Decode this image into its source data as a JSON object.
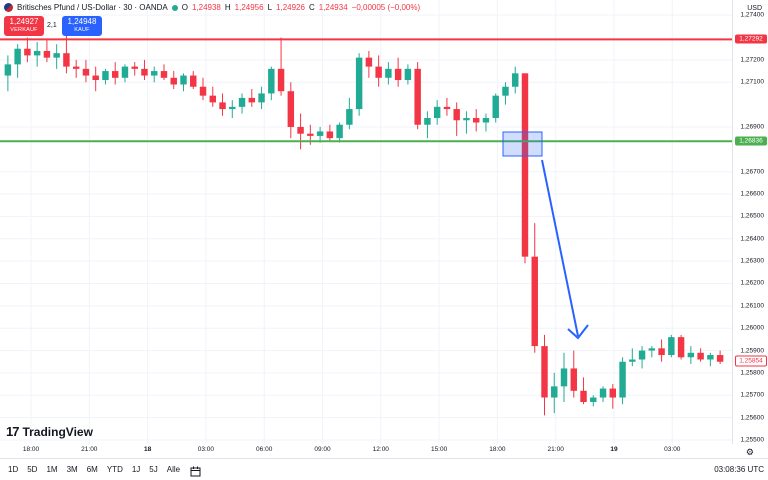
{
  "legend": {
    "symbol": "Britisches Pfund / US-Dollar · 30 · OANDA",
    "o_label": "O",
    "o": "1,24938",
    "h_label": "H",
    "h": "1,24956",
    "l_label": "L",
    "l": "1,24926",
    "c_label": "C",
    "c": "1,24934",
    "change": "−0,00005 (−0,00%)"
  },
  "trade": {
    "sell_price": "1,24927",
    "sell_label": "VERKAUF",
    "spread": "2,1",
    "buy_price": "1,24948",
    "buy_label": "KAUF"
  },
  "price_axis": {
    "currency": "USD",
    "labels": [
      "1,27400",
      "1,27292",
      "1,27200",
      "1,27100",
      "1,26900",
      "1,26836",
      "1,26700",
      "1,26600",
      "1,26500",
      "1,26400",
      "1,26300",
      "1,26200",
      "1,26100",
      "1,26000",
      "1,25900",
      "1,25800",
      "1,25700",
      "1,25600",
      "1,25500"
    ],
    "red_line_price": "1,27292",
    "green_line_price": "1,26836",
    "last_price": "1,25854"
  },
  "time_axis": {
    "labels": [
      "18:00",
      "21:00",
      "18",
      "03:00",
      "06:00",
      "09:00",
      "12:00",
      "15:00",
      "18:00",
      "21:00",
      "19",
      "03:00"
    ],
    "bold": [
      "18",
      "19"
    ]
  },
  "brand": {
    "logo_mark": "17",
    "name": "TradingView"
  },
  "bottom": {
    "timeframes": [
      "1D",
      "5D",
      "1M",
      "3M",
      "6M",
      "YTD",
      "1J",
      "5J",
      "Alle"
    ],
    "clock": "03:08:36 UTC"
  },
  "colors": {
    "up": "#22ab94",
    "down": "#f23645",
    "resistance": "#f23645",
    "support": "#4caf50",
    "arrow": "#2962ff",
    "box": "#2962ff"
  },
  "chart_data": {
    "type": "candlestick",
    "title": "Britisches Pfund / US-Dollar · 30 · OANDA",
    "ylim": [
      1.255,
      1.2745
    ],
    "candles": [
      {
        "o": 1.2713,
        "h": 1.2722,
        "l": 1.2706,
        "c": 1.2718
      },
      {
        "o": 1.2718,
        "h": 1.2727,
        "l": 1.2712,
        "c": 1.2725
      },
      {
        "o": 1.2725,
        "h": 1.273,
        "l": 1.2719,
        "c": 1.2722
      },
      {
        "o": 1.2722,
        "h": 1.2728,
        "l": 1.2717,
        "c": 1.2724
      },
      {
        "o": 1.2724,
        "h": 1.2729,
        "l": 1.2719,
        "c": 1.2721
      },
      {
        "o": 1.2721,
        "h": 1.2727,
        "l": 1.2716,
        "c": 1.2723
      },
      {
        "o": 1.2723,
        "h": 1.2731,
        "l": 1.2714,
        "c": 1.2717
      },
      {
        "o": 1.2717,
        "h": 1.272,
        "l": 1.2712,
        "c": 1.2716
      },
      {
        "o": 1.2716,
        "h": 1.272,
        "l": 1.271,
        "c": 1.2713
      },
      {
        "o": 1.2713,
        "h": 1.2717,
        "l": 1.2706,
        "c": 1.2711
      },
      {
        "o": 1.2711,
        "h": 1.2716,
        "l": 1.2709,
        "c": 1.2715
      },
      {
        "o": 1.2715,
        "h": 1.2719,
        "l": 1.2709,
        "c": 1.2712
      },
      {
        "o": 1.2712,
        "h": 1.2718,
        "l": 1.271,
        "c": 1.2717
      },
      {
        "o": 1.2717,
        "h": 1.2719,
        "l": 1.2713,
        "c": 1.2716
      },
      {
        "o": 1.2716,
        "h": 1.272,
        "l": 1.2711,
        "c": 1.2713
      },
      {
        "o": 1.2713,
        "h": 1.2717,
        "l": 1.271,
        "c": 1.2715
      },
      {
        "o": 1.2715,
        "h": 1.2718,
        "l": 1.2711,
        "c": 1.2712
      },
      {
        "o": 1.2712,
        "h": 1.2715,
        "l": 1.2707,
        "c": 1.2709
      },
      {
        "o": 1.2709,
        "h": 1.2714,
        "l": 1.2706,
        "c": 1.2713
      },
      {
        "o": 1.2713,
        "h": 1.2715,
        "l": 1.2707,
        "c": 1.2708
      },
      {
        "o": 1.2708,
        "h": 1.2712,
        "l": 1.2702,
        "c": 1.2704
      },
      {
        "o": 1.2704,
        "h": 1.2708,
        "l": 1.2699,
        "c": 1.2701
      },
      {
        "o": 1.2701,
        "h": 1.2705,
        "l": 1.2695,
        "c": 1.2698
      },
      {
        "o": 1.2698,
        "h": 1.2702,
        "l": 1.2694,
        "c": 1.2699
      },
      {
        "o": 1.2699,
        "h": 1.2705,
        "l": 1.2696,
        "c": 1.2703
      },
      {
        "o": 1.2703,
        "h": 1.2707,
        "l": 1.2699,
        "c": 1.2701
      },
      {
        "o": 1.2701,
        "h": 1.2708,
        "l": 1.2698,
        "c": 1.2705
      },
      {
        "o": 1.2705,
        "h": 1.2717,
        "l": 1.2702,
        "c": 1.2716
      },
      {
        "o": 1.2716,
        "h": 1.273,
        "l": 1.2704,
        "c": 1.2706
      },
      {
        "o": 1.2706,
        "h": 1.271,
        "l": 1.2685,
        "c": 1.269
      },
      {
        "o": 1.269,
        "h": 1.2696,
        "l": 1.268,
        "c": 1.2687
      },
      {
        "o": 1.2687,
        "h": 1.2691,
        "l": 1.2682,
        "c": 1.2686
      },
      {
        "o": 1.2686,
        "h": 1.269,
        "l": 1.2683,
        "c": 1.2688
      },
      {
        "o": 1.2688,
        "h": 1.2691,
        "l": 1.2684,
        "c": 1.2685
      },
      {
        "o": 1.2685,
        "h": 1.2692,
        "l": 1.2683,
        "c": 1.2691
      },
      {
        "o": 1.2691,
        "h": 1.2703,
        "l": 1.2689,
        "c": 1.2698
      },
      {
        "o": 1.2698,
        "h": 1.2723,
        "l": 1.2695,
        "c": 1.2721
      },
      {
        "o": 1.2721,
        "h": 1.2724,
        "l": 1.2712,
        "c": 1.2717
      },
      {
        "o": 1.2717,
        "h": 1.2722,
        "l": 1.2708,
        "c": 1.2712
      },
      {
        "o": 1.2712,
        "h": 1.2719,
        "l": 1.2709,
        "c": 1.2716
      },
      {
        "o": 1.2716,
        "h": 1.2721,
        "l": 1.2708,
        "c": 1.2711
      },
      {
        "o": 1.2711,
        "h": 1.2718,
        "l": 1.2709,
        "c": 1.2716
      },
      {
        "o": 1.2716,
        "h": 1.2719,
        "l": 1.2689,
        "c": 1.2691
      },
      {
        "o": 1.2691,
        "h": 1.2697,
        "l": 1.2685,
        "c": 1.2694
      },
      {
        "o": 1.2694,
        "h": 1.2702,
        "l": 1.2691,
        "c": 1.2699
      },
      {
        "o": 1.2699,
        "h": 1.2703,
        "l": 1.2695,
        "c": 1.2698
      },
      {
        "o": 1.2698,
        "h": 1.2701,
        "l": 1.2686,
        "c": 1.2693
      },
      {
        "o": 1.2693,
        "h": 1.2697,
        "l": 1.2687,
        "c": 1.2694
      },
      {
        "o": 1.2694,
        "h": 1.2698,
        "l": 1.2688,
        "c": 1.2692
      },
      {
        "o": 1.2692,
        "h": 1.2696,
        "l": 1.2688,
        "c": 1.2694
      },
      {
        "o": 1.2694,
        "h": 1.2705,
        "l": 1.2692,
        "c": 1.2704
      },
      {
        "o": 1.2704,
        "h": 1.271,
        "l": 1.27,
        "c": 1.2708
      },
      {
        "o": 1.2708,
        "h": 1.2717,
        "l": 1.2705,
        "c": 1.2714
      },
      {
        "o": 1.2714,
        "h": 1.2714,
        "l": 1.2629,
        "c": 1.2632
      },
      {
        "o": 1.2632,
        "h": 1.2647,
        "l": 1.2589,
        "c": 1.2592
      },
      {
        "o": 1.2592,
        "h": 1.2597,
        "l": 1.2561,
        "c": 1.2569
      },
      {
        "o": 1.2569,
        "h": 1.258,
        "l": 1.2562,
        "c": 1.2574
      },
      {
        "o": 1.2574,
        "h": 1.2589,
        "l": 1.2567,
        "c": 1.2582
      },
      {
        "o": 1.2582,
        "h": 1.259,
        "l": 1.2569,
        "c": 1.2572
      },
      {
        "o": 1.2572,
        "h": 1.2578,
        "l": 1.2566,
        "c": 1.2567
      },
      {
        "o": 1.2567,
        "h": 1.257,
        "l": 1.2565,
        "c": 1.2569
      },
      {
        "o": 1.2569,
        "h": 1.2574,
        "l": 1.2567,
        "c": 1.2573
      },
      {
        "o": 1.2573,
        "h": 1.2575,
        "l": 1.2564,
        "c": 1.2569
      },
      {
        "o": 1.2569,
        "h": 1.2587,
        "l": 1.2566,
        "c": 1.2585
      },
      {
        "o": 1.2585,
        "h": 1.2591,
        "l": 1.2583,
        "c": 1.2586
      },
      {
        "o": 1.2586,
        "h": 1.2592,
        "l": 1.2582,
        "c": 1.259
      },
      {
        "o": 1.259,
        "h": 1.2592,
        "l": 1.2587,
        "c": 1.2591
      },
      {
        "o": 1.2591,
        "h": 1.2595,
        "l": 1.2585,
        "c": 1.2588
      },
      {
        "o": 1.2588,
        "h": 1.2597,
        "l": 1.2587,
        "c": 1.2596
      },
      {
        "o": 1.2596,
        "h": 1.2597,
        "l": 1.2586,
        "c": 1.2587
      },
      {
        "o": 1.2587,
        "h": 1.2592,
        "l": 1.2584,
        "c": 1.2589
      },
      {
        "o": 1.2589,
        "h": 1.2591,
        "l": 1.2585,
        "c": 1.2586
      },
      {
        "o": 1.2586,
        "h": 1.2589,
        "l": 1.2583,
        "c": 1.2588
      },
      {
        "o": 1.2588,
        "h": 1.259,
        "l": 1.2584,
        "c": 1.2585
      }
    ]
  }
}
